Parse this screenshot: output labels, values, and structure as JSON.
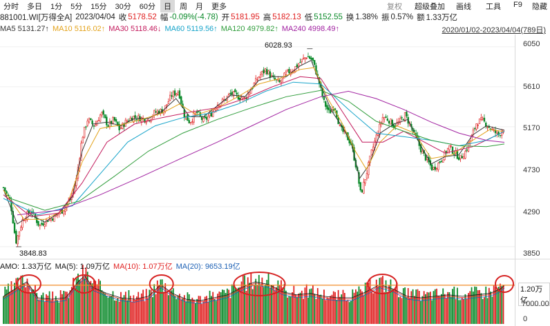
{
  "toolbar": {
    "periods": [
      "分时",
      "多日",
      "1分",
      "5分",
      "15分",
      "30分",
      "60分",
      "日",
      "周",
      "月",
      "更多"
    ],
    "active_index": 7,
    "right_items": [
      "复权",
      "超级叠加",
      "画线",
      "工具",
      "F9",
      "隐藏"
    ]
  },
  "quote": {
    "code": "881001.WI[万得全A]",
    "date": "2023/04/04",
    "close_label": "收",
    "close": "5178.52",
    "change_label": "幅",
    "change": "-0.09%(-4.78)",
    "open_label": "开",
    "open": "5181.95",
    "high_label": "高",
    "high": "5182.13",
    "low_label": "低",
    "low": "5152.55",
    "turnover_label": "换",
    "turnover": "1.38%",
    "amplitude_label": "振",
    "amplitude": "0.57%",
    "amount_label": "额",
    "amount": "1.33万亿"
  },
  "ma": {
    "ma5": "MA5 5131.27↑",
    "ma10": "MA10 5116.02↑",
    "ma30": "MA30 5118.46↓",
    "ma60": "MA60 5119.56↑",
    "ma120": "MA120 4979.82↑",
    "ma240": "MA240 4998.49↑"
  },
  "range": "2020/01/02-2023/04/04(789日)",
  "volume_panel": {
    "amo": "AMO: 1.33万亿",
    "ma5": "MA(5): 1.09万亿",
    "ma10": "MA(10): 1.07万亿",
    "ma20": "MA(20): 9653.19亿",
    "tag": "1.20万亿",
    "axis_mid": "7000.00",
    "axis_low": "0"
  },
  "price_axis": [
    "6050",
    "5610",
    "5170",
    "4730",
    "4290",
    "3850"
  ],
  "annotations": {
    "high": "6028.93",
    "low": "3848.83"
  },
  "colors": {
    "up": "#e02020",
    "down": "#0b8a2a",
    "ma5": "#333333",
    "ma10": "#e3a21a",
    "ma30": "#c2185b",
    "ma60": "#15a3c9",
    "ma120": "#2e9c3a",
    "ma240": "#a020a0",
    "hline": "#f28c28",
    "circle": "#d62020"
  },
  "chart_data": {
    "type": "candlestick",
    "price_axis_ticks": [
      6050,
      5610,
      5170,
      4730,
      4290,
      3850
    ],
    "ylim": [
      3720,
      6170
    ],
    "close_points": [
      [
        0,
        4500
      ],
      [
        10,
        4350
      ],
      [
        18,
        3900
      ],
      [
        28,
        4150
      ],
      [
        40,
        4250
      ],
      [
        52,
        4080
      ],
      [
        62,
        4140
      ],
      [
        74,
        4180
      ],
      [
        86,
        4250
      ],
      [
        98,
        4380
      ],
      [
        106,
        4600
      ],
      [
        114,
        5050
      ],
      [
        122,
        5250
      ],
      [
        132,
        5180
      ],
      [
        142,
        5320
      ],
      [
        152,
        5180
      ],
      [
        160,
        5250
      ],
      [
        168,
        5140
      ],
      [
        178,
        5230
      ],
      [
        188,
        5280
      ],
      [
        200,
        5260
      ],
      [
        210,
        5250
      ],
      [
        220,
        5330
      ],
      [
        232,
        5350
      ],
      [
        244,
        5520
      ],
      [
        254,
        5560
      ],
      [
        262,
        5300
      ],
      [
        270,
        5220
      ],
      [
        280,
        5330
      ],
      [
        290,
        5230
      ],
      [
        300,
        5300
      ],
      [
        310,
        5420
      ],
      [
        320,
        5460
      ],
      [
        330,
        5540
      ],
      [
        340,
        5500
      ],
      [
        350,
        5480
      ],
      [
        360,
        5600
      ],
      [
        370,
        5720
      ],
      [
        380,
        5800
      ],
      [
        390,
        5700
      ],
      [
        400,
        5650
      ],
      [
        410,
        5760
      ],
      [
        420,
        5800
      ],
      [
        430,
        5880
      ],
      [
        440,
        5950
      ],
      [
        448,
        5900
      ],
      [
        456,
        5700
      ],
      [
        464,
        5450
      ],
      [
        472,
        5320
      ],
      [
        480,
        5400
      ],
      [
        488,
        5150
      ],
      [
        496,
        5080
      ],
      [
        504,
        4980
      ],
      [
        512,
        4700
      ],
      [
        518,
        4420
      ],
      [
        526,
        4650
      ],
      [
        534,
        4900
      ],
      [
        542,
        5100
      ],
      [
        550,
        5280
      ],
      [
        558,
        5250
      ],
      [
        566,
        5180
      ],
      [
        574,
        5220
      ],
      [
        582,
        5300
      ],
      [
        590,
        5180
      ],
      [
        598,
        5050
      ],
      [
        606,
        4900
      ],
      [
        614,
        4800
      ],
      [
        622,
        4700
      ],
      [
        630,
        4760
      ],
      [
        638,
        4850
      ],
      [
        646,
        4950
      ],
      [
        654,
        4880
      ],
      [
        662,
        4820
      ],
      [
        670,
        4900
      ],
      [
        678,
        5050
      ],
      [
        686,
        5220
      ],
      [
        694,
        5240
      ],
      [
        702,
        5180
      ],
      [
        710,
        5120
      ],
      [
        718,
        5080
      ],
      [
        726,
        5178
      ]
    ],
    "series": [
      {
        "name": "MA5",
        "values": [
          [
            0,
            4480
          ],
          [
            20,
            4100
          ],
          [
            40,
            4200
          ],
          [
            60,
            4120
          ],
          [
            80,
            4220
          ],
          [
            100,
            4400
          ],
          [
            114,
            4900
          ],
          [
            130,
            5200
          ],
          [
            150,
            5220
          ],
          [
            170,
            5180
          ],
          [
            190,
            5260
          ],
          [
            210,
            5260
          ],
          [
            230,
            5340
          ],
          [
            250,
            5480
          ],
          [
            270,
            5280
          ],
          [
            290,
            5280
          ],
          [
            310,
            5400
          ],
          [
            330,
            5520
          ],
          [
            350,
            5500
          ],
          [
            370,
            5680
          ],
          [
            390,
            5720
          ],
          [
            410,
            5720
          ],
          [
            430,
            5840
          ],
          [
            446,
            5900
          ],
          [
            460,
            5620
          ],
          [
            476,
            5340
          ],
          [
            490,
            5180
          ],
          [
            504,
            5000
          ],
          [
            516,
            4600
          ],
          [
            530,
            4750
          ],
          [
            546,
            5100
          ],
          [
            566,
            5200
          ],
          [
            586,
            5250
          ],
          [
            602,
            5000
          ],
          [
            620,
            4760
          ],
          [
            640,
            4840
          ],
          [
            660,
            4860
          ],
          [
            680,
            5080
          ],
          [
            700,
            5180
          ],
          [
            726,
            5131
          ]
        ]
      },
      {
        "name": "MA10",
        "values": [
          [
            0,
            4470
          ],
          [
            30,
            4150
          ],
          [
            60,
            4150
          ],
          [
            90,
            4260
          ],
          [
            114,
            4780
          ],
          [
            140,
            5150
          ],
          [
            170,
            5190
          ],
          [
            200,
            5250
          ],
          [
            230,
            5320
          ],
          [
            255,
            5420
          ],
          [
            280,
            5300
          ],
          [
            310,
            5380
          ],
          [
            340,
            5500
          ],
          [
            370,
            5640
          ],
          [
            400,
            5700
          ],
          [
            430,
            5800
          ],
          [
            450,
            5820
          ],
          [
            470,
            5480
          ],
          [
            490,
            5220
          ],
          [
            510,
            4900
          ],
          [
            526,
            4700
          ],
          [
            546,
            5000
          ],
          [
            570,
            5180
          ],
          [
            596,
            5100
          ],
          [
            620,
            4820
          ],
          [
            650,
            4860
          ],
          [
            680,
            5020
          ],
          [
            705,
            5140
          ],
          [
            726,
            5116
          ]
        ]
      },
      {
        "name": "MA30",
        "values": [
          [
            0,
            4420
          ],
          [
            40,
            4180
          ],
          [
            80,
            4220
          ],
          [
            114,
            4550
          ],
          [
            150,
            5000
          ],
          [
            190,
            5200
          ],
          [
            230,
            5270
          ],
          [
            270,
            5330
          ],
          [
            310,
            5380
          ],
          [
            350,
            5480
          ],
          [
            390,
            5610
          ],
          [
            430,
            5720
          ],
          [
            460,
            5700
          ],
          [
            490,
            5350
          ],
          [
            520,
            5000
          ],
          [
            550,
            5000
          ],
          [
            580,
            5120
          ],
          [
            610,
            5000
          ],
          [
            640,
            4880
          ],
          [
            680,
            4950
          ],
          [
            726,
            5118
          ]
        ]
      },
      {
        "name": "MA60",
        "values": [
          [
            0,
            4380
          ],
          [
            50,
            4200
          ],
          [
            100,
            4300
          ],
          [
            140,
            4650
          ],
          [
            180,
            5000
          ],
          [
            220,
            5180
          ],
          [
            260,
            5270
          ],
          [
            300,
            5320
          ],
          [
            340,
            5420
          ],
          [
            380,
            5560
          ],
          [
            420,
            5660
          ],
          [
            460,
            5640
          ],
          [
            500,
            5360
          ],
          [
            540,
            5100
          ],
          [
            580,
            5060
          ],
          [
            620,
            5020
          ],
          [
            660,
            4960
          ],
          [
            700,
            5020
          ],
          [
            726,
            5120
          ]
        ]
      },
      {
        "name": "MA120",
        "values": [
          [
            10,
            4380
          ],
          [
            60,
            4250
          ],
          [
            110,
            4350
          ],
          [
            160,
            4620
          ],
          [
            210,
            4900
          ],
          [
            260,
            5100
          ],
          [
            310,
            5250
          ],
          [
            360,
            5380
          ],
          [
            410,
            5500
          ],
          [
            460,
            5570
          ],
          [
            500,
            5450
          ],
          [
            540,
            5230
          ],
          [
            580,
            5120
          ],
          [
            620,
            5020
          ],
          [
            660,
            4960
          ],
          [
            700,
            4950
          ],
          [
            726,
            4980
          ]
        ]
      },
      {
        "name": "MA240",
        "values": [
          [
            20,
            4200
          ],
          [
            80,
            4250
          ],
          [
            140,
            4420
          ],
          [
            200,
            4620
          ],
          [
            260,
            4830
          ],
          [
            310,
            5000
          ],
          [
            360,
            5180
          ],
          [
            410,
            5360
          ],
          [
            460,
            5500
          ],
          [
            500,
            5560
          ],
          [
            540,
            5480
          ],
          [
            580,
            5360
          ],
          [
            620,
            5220
          ],
          [
            660,
            5100
          ],
          [
            700,
            5020
          ],
          [
            726,
            4998
          ]
        ]
      }
    ],
    "volume_ylim": [
      0,
      16000
    ],
    "volume_samples": [
      [
        0,
        9500
      ],
      [
        20,
        12500
      ],
      [
        34,
        14500
      ],
      [
        50,
        9000
      ],
      [
        70,
        8500
      ],
      [
        90,
        9000
      ],
      [
        110,
        15000
      ],
      [
        118,
        16500
      ],
      [
        130,
        12500
      ],
      [
        150,
        10500
      ],
      [
        170,
        9000
      ],
      [
        190,
        8500
      ],
      [
        210,
        9500
      ],
      [
        228,
        13500
      ],
      [
        245,
        10500
      ],
      [
        265,
        8500
      ],
      [
        285,
        8000
      ],
      [
        305,
        9000
      ],
      [
        325,
        10000
      ],
      [
        345,
        12500
      ],
      [
        365,
        14500
      ],
      [
        385,
        13500
      ],
      [
        405,
        11000
      ],
      [
        425,
        10000
      ],
      [
        445,
        10500
      ],
      [
        465,
        9500
      ],
      [
        485,
        9000
      ],
      [
        505,
        9000
      ],
      [
        525,
        11000
      ],
      [
        545,
        13500
      ],
      [
        565,
        12000
      ],
      [
        585,
        9500
      ],
      [
        605,
        9000
      ],
      [
        625,
        9500
      ],
      [
        645,
        10000
      ],
      [
        665,
        9500
      ],
      [
        685,
        10000
      ],
      [
        705,
        10500
      ],
      [
        720,
        12000
      ],
      [
        726,
        13300
      ]
    ],
    "highlight_circles_x": [
      37,
      117,
      229,
      371,
      549,
      726
    ]
  }
}
